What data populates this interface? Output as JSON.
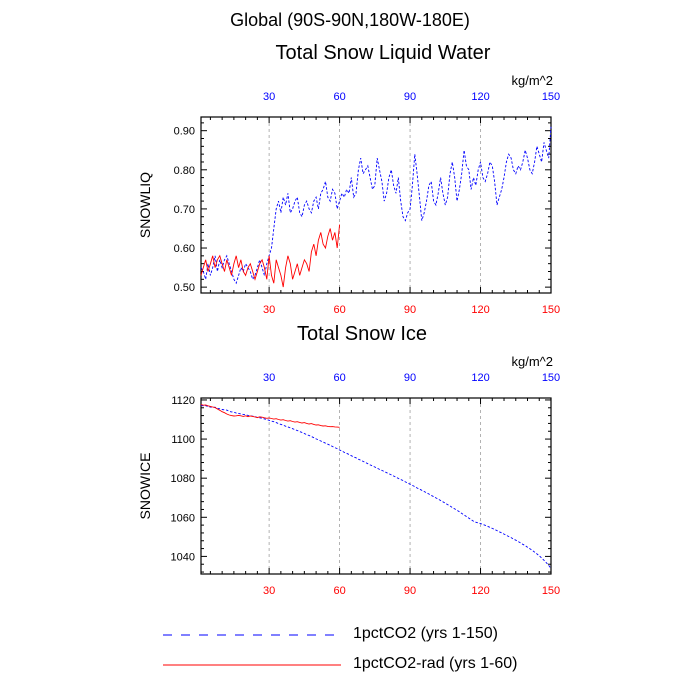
{
  "page": {
    "supertitle": "Global (90S-90N,180W-180E)"
  },
  "colors": {
    "series1": "#0000ff",
    "series2": "#ff0000",
    "axis": "#000000",
    "grid": "#a0a0a0"
  },
  "legend": {
    "items": [
      {
        "label": "1pctCO2 (yrs 1-150)",
        "color": "#0000ff",
        "style": "dashed"
      },
      {
        "label": "1pctCO2-rad (yrs 1-60)",
        "color": "#ff0000",
        "style": "solid"
      }
    ]
  },
  "chart_data": [
    {
      "type": "line",
      "title": "Total Snow Liquid Water",
      "ylabel": "SNOWLIQ",
      "units": "kg/m^2",
      "xlim": [
        1,
        150
      ],
      "ylim": [
        0.485,
        0.935
      ],
      "yticks": [
        0.5,
        0.6,
        0.7,
        0.8,
        0.9
      ],
      "ytick_labels": [
        "0.50",
        "0.60",
        "0.70",
        "0.80",
        "0.90"
      ],
      "xticks": [
        30,
        60,
        90,
        120,
        150
      ],
      "xtick_labels": [
        "30",
        "60",
        "90",
        "120",
        "150"
      ],
      "top_axis_color": "#0000ff",
      "bottom_axis_color": "#ff0000",
      "grid": "vertical dashed at 30,60,90,120",
      "series": [
        {
          "name": "1pctCO2 (yrs 1-150)",
          "x_start": 1,
          "values": [
            0.55,
            0.54,
            0.52,
            0.56,
            0.53,
            0.55,
            0.58,
            0.54,
            0.57,
            0.55,
            0.57,
            0.58,
            0.56,
            0.54,
            0.52,
            0.51,
            0.53,
            0.55,
            0.54,
            0.56,
            0.55,
            0.54,
            0.52,
            0.53,
            0.55,
            0.57,
            0.55,
            0.53,
            0.56,
            0.58,
            0.6,
            0.65,
            0.7,
            0.72,
            0.69,
            0.73,
            0.71,
            0.74,
            0.69,
            0.7,
            0.72,
            0.73,
            0.69,
            0.68,
            0.71,
            0.72,
            0.7,
            0.69,
            0.72,
            0.73,
            0.7,
            0.74,
            0.75,
            0.77,
            0.73,
            0.72,
            0.75,
            0.74,
            0.7,
            0.72,
            0.74,
            0.73,
            0.75,
            0.74,
            0.78,
            0.73,
            0.74,
            0.8,
            0.83,
            0.79,
            0.8,
            0.81,
            0.78,
            0.75,
            0.76,
            0.83,
            0.8,
            0.77,
            0.72,
            0.74,
            0.78,
            0.8,
            0.76,
            0.74,
            0.78,
            0.72,
            0.68,
            0.67,
            0.69,
            0.7,
            0.76,
            0.84,
            0.79,
            0.73,
            0.67,
            0.69,
            0.72,
            0.76,
            0.77,
            0.72,
            0.71,
            0.74,
            0.78,
            0.74,
            0.71,
            0.73,
            0.79,
            0.82,
            0.78,
            0.72,
            0.75,
            0.79,
            0.85,
            0.81,
            0.8,
            0.75,
            0.78,
            0.76,
            0.8,
            0.82,
            0.78,
            0.77,
            0.79,
            0.82,
            0.81,
            0.77,
            0.71,
            0.73,
            0.75,
            0.78,
            0.82,
            0.84,
            0.83,
            0.8,
            0.79,
            0.81,
            0.8,
            0.82,
            0.85,
            0.83,
            0.8,
            0.79,
            0.82,
            0.86,
            0.84,
            0.82,
            0.87,
            0.85,
            0.83,
            0.91
          ]
        },
        {
          "name": "1pctCO2-rad (yrs 1-60)",
          "x_start": 1,
          "values": [
            0.53,
            0.55,
            0.57,
            0.54,
            0.56,
            0.58,
            0.55,
            0.57,
            0.58,
            0.56,
            0.54,
            0.57,
            0.55,
            0.53,
            0.56,
            0.58,
            0.55,
            0.57,
            0.54,
            0.53,
            0.55,
            0.56,
            0.54,
            0.52,
            0.54,
            0.56,
            0.57,
            0.55,
            0.52,
            0.58,
            0.53,
            0.51,
            0.57,
            0.55,
            0.53,
            0.5,
            0.55,
            0.58,
            0.56,
            0.52,
            0.54,
            0.56,
            0.53,
            0.55,
            0.57,
            0.56,
            0.54,
            0.59,
            0.61,
            0.58,
            0.62,
            0.64,
            0.61,
            0.6,
            0.63,
            0.65,
            0.62,
            0.64,
            0.6,
            0.66
          ]
        }
      ]
    },
    {
      "type": "line",
      "title": "Total Snow Ice",
      "ylabel": "SNOWICE",
      "units": "kg/m^2",
      "xlim": [
        1,
        150
      ],
      "ylim": [
        1031,
        1121
      ],
      "yticks": [
        1040,
        1060,
        1080,
        1100,
        1120
      ],
      "ytick_labels": [
        "1040",
        "1060",
        "1080",
        "1100",
        "1120"
      ],
      "xticks": [
        30,
        60,
        90,
        120,
        150
      ],
      "xtick_labels": [
        "30",
        "60",
        "90",
        "120",
        "150"
      ],
      "top_axis_color": "#0000ff",
      "bottom_axis_color": "#ff0000",
      "grid": "vertical dashed at 30,60,90,120",
      "series": [
        {
          "name": "1pctCO2 (yrs 1-150)",
          "x_start": 1,
          "values": [
            1117.2,
            1117.0,
            1117.1,
            1116.6,
            1116.4,
            1116.2,
            1116.3,
            1115.7,
            1115.5,
            1115.1,
            1114.9,
            1114.8,
            1114.2,
            1113.9,
            1113.8,
            1113.3,
            1113.1,
            1112.8,
            1112.6,
            1112.4,
            1112.1,
            1111.9,
            1111.7,
            1111.5,
            1111.1,
            1110.9,
            1110.6,
            1110.3,
            1110.0,
            1109.6,
            1109.2,
            1108.9,
            1108.4,
            1107.9,
            1107.5,
            1107.1,
            1106.6,
            1106.2,
            1105.7,
            1105.3,
            1104.8,
            1104.4,
            1103.8,
            1103.4,
            1102.8,
            1102.3,
            1101.8,
            1101.3,
            1100.7,
            1100.1,
            1099.6,
            1099.0,
            1098.5,
            1097.9,
            1097.4,
            1096.8,
            1096.2,
            1095.6,
            1095.1,
            1094.4,
            1093.9,
            1093.2,
            1092.7,
            1092.1,
            1091.5,
            1090.9,
            1090.4,
            1089.7,
            1089.2,
            1088.6,
            1088.0,
            1087.4,
            1086.8,
            1086.3,
            1085.7,
            1085.1,
            1084.5,
            1084.0,
            1083.4,
            1082.8,
            1082.3,
            1081.7,
            1081.1,
            1080.5,
            1079.9,
            1079.3,
            1078.8,
            1078.1,
            1077.5,
            1076.9,
            1076.3,
            1075.7,
            1075.0,
            1074.4,
            1073.8,
            1073.2,
            1072.5,
            1071.9,
            1071.2,
            1070.6,
            1069.9,
            1069.3,
            1068.6,
            1067.9,
            1067.2,
            1066.5,
            1065.8,
            1065.0,
            1064.3,
            1063.6,
            1062.8,
            1062.0,
            1061.2,
            1060.4,
            1059.6,
            1058.8,
            1058.0,
            1057.5,
            1057.1,
            1056.8,
            1056.3,
            1055.9,
            1055.4,
            1054.9,
            1054.3,
            1053.8,
            1053.2,
            1052.6,
            1052.0,
            1051.4,
            1050.8,
            1050.2,
            1049.6,
            1048.9,
            1048.3,
            1047.6,
            1046.9,
            1046.2,
            1045.5,
            1044.7,
            1043.9,
            1043.1,
            1042.2,
            1041.3,
            1040.3,
            1039.2,
            1038.0,
            1036.8,
            1035.4,
            1033.8
          ]
        },
        {
          "name": "1pctCO2-rad (yrs 1-60)",
          "x_start": 1,
          "values": [
            1117.6,
            1117.3,
            1117.4,
            1117.0,
            1116.7,
            1116.4,
            1116.1,
            1115.4,
            1114.7,
            1114.0,
            1113.5,
            1112.8,
            1112.3,
            1112.0,
            1111.8,
            1111.9,
            1112.1,
            1111.9,
            1111.6,
            1111.9,
            1111.5,
            1111.8,
            1111.6,
            1111.3,
            1111.0,
            1111.4,
            1111.2,
            1110.9,
            1110.6,
            1110.8,
            1110.5,
            1110.2,
            1110.4,
            1110.0,
            1109.7,
            1109.9,
            1109.5,
            1109.2,
            1109.4,
            1109.0,
            1108.7,
            1108.9,
            1108.5,
            1108.2,
            1108.4,
            1108.0,
            1107.7,
            1107.9,
            1107.5,
            1107.2,
            1107.3,
            1106.9,
            1106.7,
            1106.8,
            1106.5,
            1106.3,
            1106.4,
            1106.2,
            1106.1,
            1106.0
          ]
        }
      ]
    }
  ]
}
